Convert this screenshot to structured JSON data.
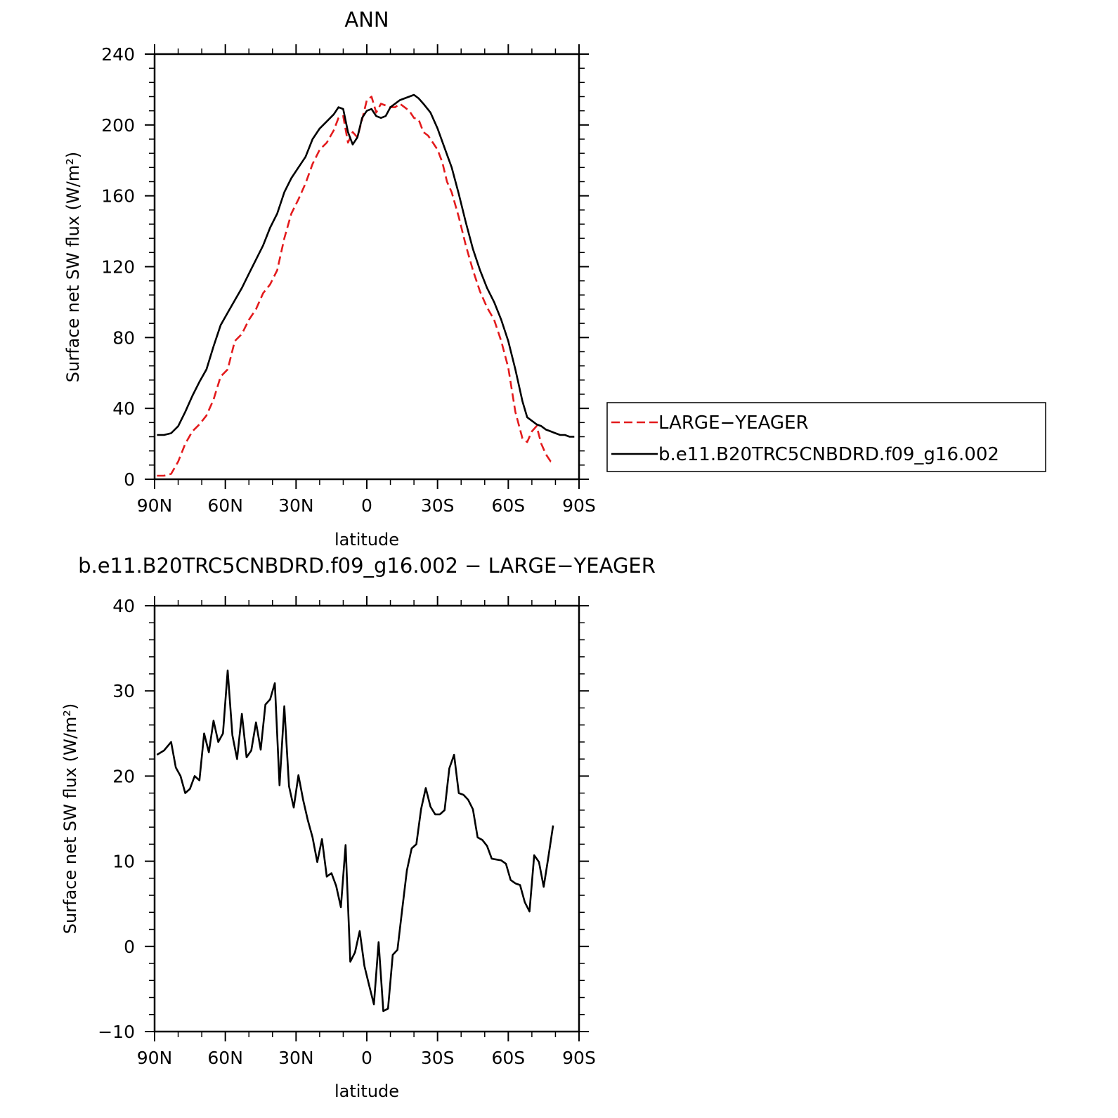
{
  "chart_data": [
    {
      "type": "line",
      "title": "ANN",
      "xlabel": "latitude",
      "ylabel": "Surface net SW flux (W/m²)",
      "xlim": [
        90,
        -90
      ],
      "ylim": [
        0,
        240
      ],
      "xticks": [
        90,
        60,
        30,
        0,
        -30,
        -60,
        -90
      ],
      "xtick_labels": [
        "90N",
        "60N",
        "30N",
        "0",
        "30S",
        "60S",
        "90S"
      ],
      "yticks": [
        0,
        40,
        80,
        120,
        160,
        200,
        240
      ],
      "ytick_labels": [
        "0",
        "40",
        "80",
        "120",
        "160",
        "200",
        "240"
      ],
      "grid": false,
      "legend": "right",
      "series": [
        {
          "name": "LARGE−YEAGER",
          "color": "#e31a1c",
          "style": "dashed",
          "x": [
            89,
            86,
            83,
            80,
            77,
            74,
            71,
            68,
            65,
            62,
            59,
            56,
            53,
            50,
            47,
            44,
            41,
            38,
            35,
            32,
            29,
            26,
            23,
            20,
            17,
            14,
            12,
            10,
            8,
            6,
            4,
            2,
            0,
            -2,
            -4,
            -6,
            -8,
            -10,
            -12,
            -14,
            -16,
            -18,
            -20,
            -22,
            -24,
            -26,
            -28,
            -30,
            -32,
            -34,
            -36,
            -39,
            -42,
            -45,
            -48,
            -51,
            -54,
            -57,
            -60,
            -63,
            -66,
            -68,
            -70,
            -72,
            -74,
            -76,
            -78,
            -79
          ],
          "y": [
            2,
            2,
            3,
            10,
            20,
            27,
            31,
            36,
            45,
            58,
            62,
            78,
            82,
            90,
            96,
            105,
            110,
            118,
            136,
            150,
            158,
            167,
            178,
            186,
            190,
            197,
            204,
            205,
            190,
            196,
            193,
            203,
            214,
            216,
            207,
            212,
            211,
            210,
            210,
            212,
            210,
            208,
            204,
            203,
            196,
            194,
            190,
            186,
            179,
            168,
            162,
            148,
            132,
            118,
            106,
            97,
            90,
            78,
            63,
            38,
            23,
            21,
            27,
            30,
            20,
            14,
            10,
            10
          ]
        },
        {
          "name": "b.e11.B20TRC5CNBDRD.f09_g16.002",
          "color": "#000000",
          "style": "solid",
          "x": [
            89,
            86,
            83,
            80,
            77,
            74,
            71,
            68,
            65,
            62,
            59,
            56,
            53,
            50,
            47,
            44,
            41,
            38,
            35,
            32,
            29,
            26,
            23,
            20,
            17,
            14,
            12,
            10,
            8,
            6,
            4,
            2,
            0,
            -2,
            -4,
            -6,
            -8,
            -10,
            -12,
            -14,
            -16,
            -18,
            -20,
            -22,
            -24,
            -27,
            -30,
            -33,
            -36,
            -39,
            -42,
            -45,
            -48,
            -51,
            -54,
            -57,
            -60,
            -63,
            -66,
            -68,
            -70,
            -72,
            -74,
            -76,
            -78,
            -80,
            -82,
            -84,
            -86,
            -88
          ],
          "y": [
            25,
            25,
            26,
            30,
            38,
            47,
            55,
            62,
            75,
            87,
            94,
            101,
            108,
            116,
            124,
            132,
            142,
            150,
            162,
            170,
            176,
            182,
            192,
            198,
            202,
            206,
            210,
            209,
            196,
            189,
            193,
            204,
            208,
            209,
            205,
            204,
            205,
            210,
            212,
            214,
            215,
            216,
            217,
            215,
            212,
            207,
            198,
            187,
            176,
            161,
            145,
            130,
            118,
            108,
            100,
            90,
            78,
            62,
            44,
            35,
            33,
            31,
            30,
            28,
            27,
            26,
            25,
            25,
            24,
            24
          ]
        }
      ]
    },
    {
      "type": "line",
      "title": "b.e11.B20TRC5CNBDRD.f09_g16.002 − LARGE−YEAGER",
      "xlabel": "latitude",
      "ylabel": "Surface net SW flux (W/m²)",
      "xlim": [
        90,
        -90
      ],
      "ylim": [
        -10,
        40
      ],
      "xticks": [
        90,
        60,
        30,
        0,
        -30,
        -60,
        -90
      ],
      "xtick_labels": [
        "90N",
        "60N",
        "30N",
        "0",
        "30S",
        "60S",
        "90S"
      ],
      "yticks": [
        -10,
        0,
        10,
        20,
        30,
        40
      ],
      "ytick_labels": [
        "−10",
        "0",
        "10",
        "20",
        "30",
        "40"
      ],
      "grid": false,
      "series": [
        {
          "color": "#000000",
          "style": "solid",
          "x": [
            89,
            86,
            83,
            81,
            79,
            77,
            75,
            73,
            71,
            69,
            67,
            65,
            63,
            61,
            59,
            57,
            55,
            53,
            51,
            49,
            47,
            45,
            43,
            41,
            39,
            37,
            35,
            33,
            31,
            29,
            27,
            25,
            23,
            21,
            19,
            17,
            15,
            13,
            11,
            9,
            7,
            5,
            3,
            1,
            -1,
            -3,
            -5,
            -7,
            -9,
            -11,
            -13,
            -15,
            -17,
            -19,
            -21,
            -23,
            -25,
            -27,
            -29,
            -31,
            -33,
            -35,
            -37,
            -39,
            -41,
            -43,
            -45,
            -47,
            -49,
            -51,
            -53,
            -55,
            -57,
            -59,
            -61,
            -63,
            -65,
            -67,
            -69,
            -71,
            -73,
            -75,
            -77,
            -79
          ],
          "y": [
            22.5,
            23,
            24,
            21,
            20,
            18,
            18.5,
            20,
            19.5,
            25,
            22.8,
            26.5,
            24,
            25,
            32.4,
            24.8,
            22,
            27.3,
            22.2,
            23,
            26.3,
            23.1,
            28.4,
            29,
            30.9,
            18.9,
            28.2,
            18.8,
            16.3,
            20.1,
            17.2,
            14.8,
            12.8,
            9.9,
            12.6,
            8.2,
            8.6,
            7.1,
            4.6,
            11.9,
            -1.8,
            -0.7,
            1.8,
            -2.3,
            -4.6,
            -6.8,
            0.5,
            -7.6,
            -7.3,
            -1,
            -0.4,
            4.3,
            8.9,
            11.5,
            12,
            16.1,
            18.6,
            16.4,
            15.5,
            15.5,
            16,
            20.9,
            22.5,
            18,
            17.8,
            17.2,
            16.1,
            12.8,
            12.5,
            11.8,
            10.3,
            10.2,
            10.1,
            9.7,
            7.8,
            7.4,
            7.2,
            5.2,
            4.1,
            10.7,
            9.9,
            7,
            10.5,
            14.2
          ]
        }
      ]
    }
  ]
}
